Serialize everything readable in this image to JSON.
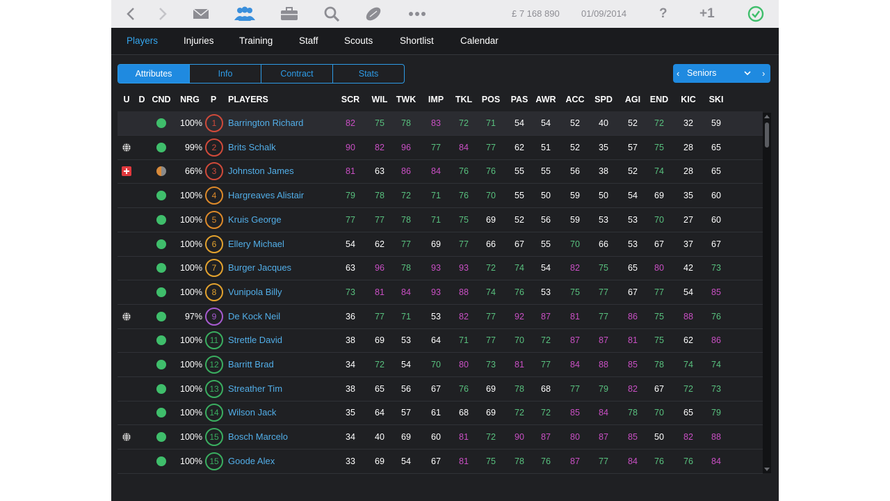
{
  "toolbar": {
    "money": "£ 7 168 890",
    "date": "01/09/2014",
    "help": "?",
    "plus_one": "+1",
    "icons": [
      "back-arrow-icon",
      "forward-arrow-icon",
      "mail-icon",
      "people-icon",
      "briefcase-icon",
      "search-icon",
      "rugby-ball-icon",
      "more-icon",
      "check-clock-icon"
    ]
  },
  "nav": {
    "items": [
      "Players",
      "Injuries",
      "Training",
      "Staff",
      "Scouts",
      "Shortlist",
      "Calendar"
    ],
    "active": "Players"
  },
  "tabs": {
    "items": [
      "Attributes",
      "Info",
      "Contract",
      "Stats"
    ],
    "active": "Attributes"
  },
  "squad": {
    "label": "Seniors"
  },
  "columns": {
    "u": "U",
    "d": "D",
    "cnd": "CND",
    "nrg": "NRG",
    "p": "P",
    "players": "PLAYERS",
    "attrs": [
      "SCR",
      "WIL",
      "TWK",
      "IMP",
      "TKL",
      "POS",
      "PAS",
      "AWR",
      "ACC",
      "SPD",
      "AGI",
      "END",
      "KIC",
      "SKI"
    ]
  },
  "colors": {
    "accent": "#34a6ee",
    "high": "#c94fc4",
    "good": "#58c07e",
    "normal": "#ffffff",
    "prop": "#d04a3a",
    "lock": "#dd8a2a",
    "back_row": "#e3a22e",
    "scrum_half": "#a65bd0",
    "back": "#3aae60"
  },
  "players": [
    {
      "num": "1",
      "name": "Barrington Richard",
      "nrg": "100%",
      "cnd": "full",
      "flag": "",
      "pos_color": "#d04a3a",
      "selected": true,
      "attrs": [
        82,
        75,
        78,
        83,
        72,
        71,
        54,
        54,
        52,
        40,
        52,
        72,
        32,
        59
      ]
    },
    {
      "num": "2",
      "name": "Brits Schalk",
      "nrg": "99%",
      "cnd": "full",
      "flag": "globe",
      "pos_color": "#d04a3a",
      "attrs": [
        90,
        82,
        96,
        77,
        84,
        77,
        62,
        51,
        52,
        35,
        57,
        75,
        28,
        65
      ]
    },
    {
      "num": "3",
      "name": "Johnston James",
      "nrg": "66%",
      "cnd": "half",
      "flag": "injury",
      "pos_color": "#d04a3a",
      "attrs": [
        81,
        63,
        86,
        84,
        76,
        76,
        55,
        55,
        56,
        38,
        52,
        74,
        28,
        65
      ]
    },
    {
      "num": "4",
      "name": "Hargreaves Alistair",
      "nrg": "100%",
      "cnd": "full",
      "flag": "",
      "pos_color": "#dd8a2a",
      "attrs": [
        79,
        78,
        72,
        71,
        76,
        70,
        55,
        50,
        59,
        50,
        54,
        69,
        35,
        60
      ]
    },
    {
      "num": "5",
      "name": "Kruis George",
      "nrg": "100%",
      "cnd": "full",
      "flag": "",
      "pos_color": "#dd8a2a",
      "attrs": [
        77,
        77,
        78,
        71,
        75,
        69,
        52,
        56,
        59,
        53,
        53,
        70,
        27,
        60
      ]
    },
    {
      "num": "6",
      "name": "Ellery Michael",
      "nrg": "100%",
      "cnd": "full",
      "flag": "",
      "pos_color": "#e3a22e",
      "attrs": [
        54,
        62,
        77,
        69,
        77,
        66,
        67,
        55,
        70,
        66,
        53,
        67,
        37,
        67
      ]
    },
    {
      "num": "7",
      "name": "Burger Jacques",
      "nrg": "100%",
      "cnd": "full",
      "flag": "",
      "pos_color": "#e3a22e",
      "attrs": [
        63,
        96,
        78,
        93,
        93,
        72,
        74,
        54,
        82,
        75,
        65,
        80,
        42,
        73
      ]
    },
    {
      "num": "8",
      "name": "Vunipola Billy",
      "nrg": "100%",
      "cnd": "full",
      "flag": "",
      "pos_color": "#e3a22e",
      "attrs": [
        73,
        81,
        84,
        93,
        88,
        74,
        76,
        53,
        75,
        77,
        67,
        77,
        54,
        85
      ]
    },
    {
      "num": "9",
      "name": "De Kock Neil",
      "nrg": "97%",
      "cnd": "full",
      "flag": "globe",
      "pos_color": "#a65bd0",
      "attrs": [
        36,
        77,
        71,
        53,
        82,
        77,
        92,
        87,
        81,
        77,
        86,
        75,
        88,
        76
      ]
    },
    {
      "num": "11",
      "name": "Strettle David",
      "nrg": "100%",
      "cnd": "full",
      "flag": "",
      "pos_color": "#3aae60",
      "attrs": [
        38,
        69,
        53,
        64,
        71,
        77,
        70,
        72,
        87,
        87,
        81,
        75,
        62,
        86
      ]
    },
    {
      "num": "12",
      "name": "Barritt Brad",
      "nrg": "100%",
      "cnd": "full",
      "flag": "",
      "pos_color": "#3aae60",
      "attrs": [
        34,
        72,
        54,
        70,
        80,
        73,
        81,
        77,
        84,
        88,
        85,
        78,
        74,
        74
      ]
    },
    {
      "num": "13",
      "name": "Streather Tim",
      "nrg": "100%",
      "cnd": "full",
      "flag": "",
      "pos_color": "#3aae60",
      "attrs": [
        38,
        65,
        56,
        67,
        76,
        69,
        78,
        68,
        77,
        79,
        82,
        67,
        72,
        73
      ]
    },
    {
      "num": "14",
      "name": "Wilson Jack",
      "nrg": "100%",
      "cnd": "full",
      "flag": "",
      "pos_color": "#3aae60",
      "attrs": [
        35,
        64,
        57,
        61,
        68,
        69,
        72,
        72,
        85,
        84,
        78,
        70,
        65,
        79
      ]
    },
    {
      "num": "15",
      "name": "Bosch Marcelo",
      "nrg": "100%",
      "cnd": "full",
      "flag": "globe",
      "pos_color": "#3aae60",
      "attrs": [
        34,
        40,
        69,
        60,
        81,
        72,
        90,
        87,
        80,
        87,
        85,
        50,
        82,
        88
      ]
    },
    {
      "num": "15",
      "name": "Goode Alex",
      "nrg": "100%",
      "cnd": "full",
      "flag": "",
      "pos_color": "#3aae60",
      "attrs": [
        33,
        69,
        54,
        67,
        81,
        75,
        78,
        76,
        87,
        77,
        84,
        76,
        76,
        84
      ]
    }
  ]
}
